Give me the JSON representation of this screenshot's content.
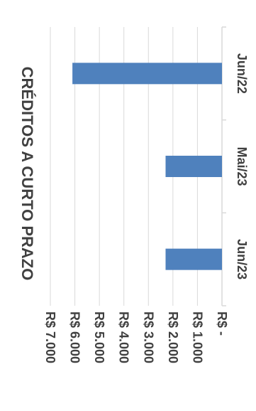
{
  "chart_data": {
    "type": "bar",
    "orientation": "horizontal",
    "title": "CRÉDITOS A CURTO PRAZO",
    "categories": [
      "Jun/22",
      "Mai/23",
      "Jun/23"
    ],
    "values": [
      6100,
      2300,
      2300
    ],
    "value_axis": {
      "min": 0,
      "max": 7000,
      "step": 1000,
      "tick_labels": [
        "R$ -",
        "R$ 1.000",
        "R$ 2.000",
        "R$ 3.000",
        "R$ 4.000",
        "R$ 5.000",
        "R$ 6.000",
        "R$ 7.000"
      ]
    },
    "grid": true,
    "legend": "none",
    "bar_color": "#4f81bd",
    "grid_color": "#d9d9d9",
    "text_color": "#404040"
  }
}
